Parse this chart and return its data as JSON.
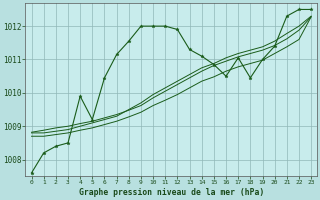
{
  "title": "Graphe pression niveau de la mer (hPa)",
  "background_color": "#b8e0e0",
  "plot_bg_color": "#c8ecec",
  "grid_color": "#90b8b8",
  "line_color": "#1a5c1a",
  "xlim": [
    -0.5,
    23.5
  ],
  "ylim": [
    1007.5,
    1012.7
  ],
  "xticks": [
    0,
    1,
    2,
    3,
    4,
    5,
    6,
    7,
    8,
    9,
    10,
    11,
    12,
    13,
    14,
    15,
    16,
    17,
    18,
    19,
    20,
    21,
    22,
    23
  ],
  "yticks": [
    1008,
    1009,
    1010,
    1011,
    1012
  ],
  "series0": [
    1007.6,
    1008.2,
    1008.4,
    1008.5,
    1009.9,
    1009.2,
    1010.45,
    1011.15,
    1011.55,
    1012.0,
    1012.0,
    1012.0,
    1011.9,
    1011.3,
    1011.1,
    1010.85,
    1010.5,
    1011.05,
    1010.45,
    1011.0,
    1011.4,
    1012.3,
    1012.5,
    1012.5
  ],
  "series1": [
    1008.8,
    1008.8,
    1008.85,
    1008.9,
    1009.0,
    1009.1,
    1009.2,
    1009.3,
    1009.5,
    1009.7,
    1009.95,
    1010.15,
    1010.35,
    1010.55,
    1010.75,
    1010.88,
    1011.05,
    1011.18,
    1011.28,
    1011.38,
    1011.55,
    1011.78,
    1012.0,
    1012.3
  ],
  "series2": [
    1008.7,
    1008.7,
    1008.75,
    1008.8,
    1008.88,
    1008.95,
    1009.05,
    1009.15,
    1009.28,
    1009.42,
    1009.62,
    1009.78,
    1009.95,
    1010.15,
    1010.35,
    1010.48,
    1010.65,
    1010.78,
    1010.88,
    1010.98,
    1011.18,
    1011.38,
    1011.6,
    1012.28
  ],
  "series3": [
    1008.82,
    1008.88,
    1008.95,
    1009.0,
    1009.08,
    1009.15,
    1009.25,
    1009.35,
    1009.48,
    1009.62,
    1009.85,
    1010.05,
    1010.25,
    1010.45,
    1010.65,
    1010.82,
    1010.95,
    1011.08,
    1011.18,
    1011.28,
    1011.42,
    1011.62,
    1011.88,
    1012.28
  ]
}
